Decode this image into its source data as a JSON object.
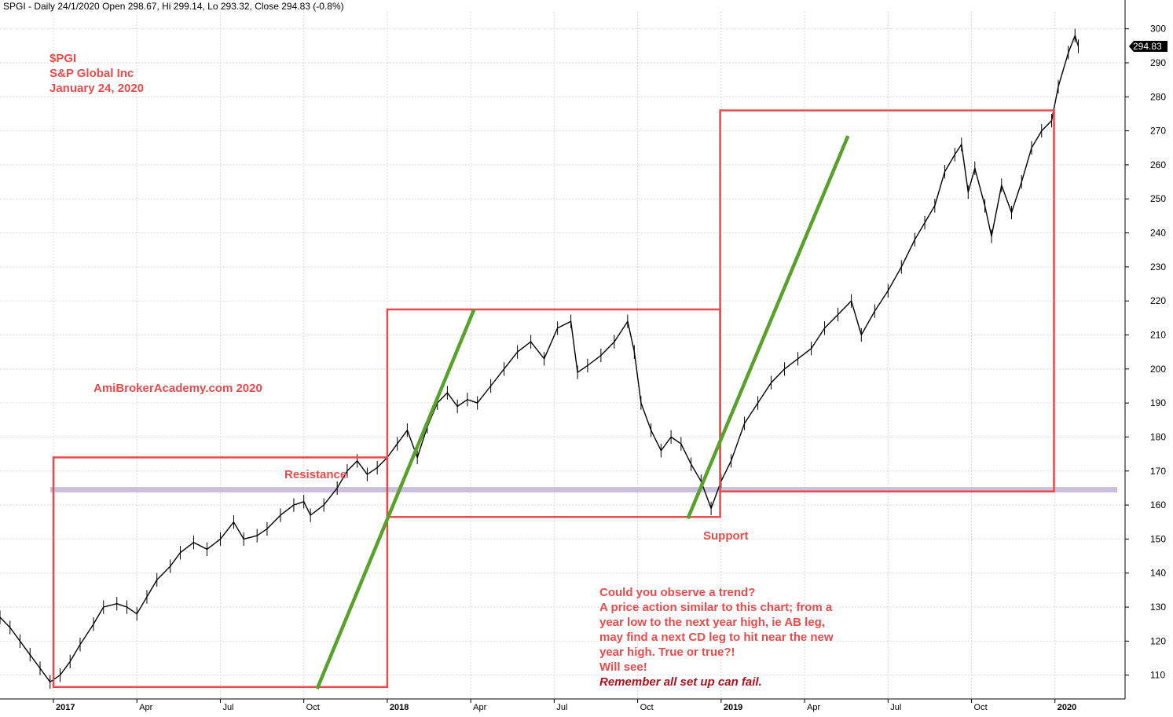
{
  "header": "SPGI - Daily 24/1/2020 Open 298.67, Hi 299.14, Lo 293.32, Close 294.83 (-0.8%)",
  "title_lines": [
    "$PGI",
    "S&P Global Inc",
    "January 24, 2020"
  ],
  "watermark": "AmiBrokerAcademy.com  2020",
  "annotations": {
    "resistance": "Resistance",
    "support": "Support"
  },
  "note_lines": [
    "Could you observe a trend?",
    "A price action similar to this chart; from a",
    "year low to the next year high, ie AB leg,",
    "may find a next CD leg to hit near the new",
    "year high. True or true?!",
    "Will see!"
  ],
  "note_emphasis": "Remember all set up can fail.",
  "last_price_label": "294.83",
  "colors": {
    "price": "#000000",
    "boxes": "#e84b4b",
    "trendlines": "#5aa02c",
    "level_line": "#c8c0dc",
    "grid": "#d9d9d9",
    "last_price_bg": "#000000"
  },
  "chart_data": {
    "type": "line",
    "ticker": "SPGI",
    "ylim": [
      103,
      305
    ],
    "y_ticks": [
      110,
      120,
      130,
      140,
      150,
      160,
      170,
      180,
      190,
      200,
      210,
      220,
      230,
      240,
      250,
      260,
      270,
      280,
      290,
      300
    ],
    "x_tick_labels": [
      "2017",
      "Apr",
      "Jul",
      "Oct",
      "2018",
      "Apr",
      "Jul",
      "Oct",
      "2019",
      "Apr",
      "Jul",
      "Oct",
      "2020"
    ],
    "x_ticks": [
      2017.0,
      2017.25,
      2017.5,
      2017.75,
      2018.0,
      2018.25,
      2018.5,
      2018.75,
      2019.0,
      2019.25,
      2019.5,
      2019.75,
      2020.0
    ],
    "xlim": [
      2016.84,
      2020.21
    ],
    "year_labels": [
      "2017",
      "2018",
      "2019",
      "2020"
    ],
    "grid": true,
    "series": [
      {
        "values": [
          [
            2016.84,
            127
          ],
          [
            2016.87,
            124
          ],
          [
            2016.9,
            120
          ],
          [
            2016.93,
            116
          ],
          [
            2016.96,
            112
          ],
          [
            2016.99,
            108
          ],
          [
            2017.02,
            110
          ],
          [
            2017.05,
            114
          ],
          [
            2017.08,
            119
          ],
          [
            2017.12,
            125
          ],
          [
            2017.15,
            130
          ],
          [
            2017.19,
            131
          ],
          [
            2017.22,
            130
          ],
          [
            2017.25,
            128
          ],
          [
            2017.28,
            133
          ],
          [
            2017.31,
            138
          ],
          [
            2017.35,
            142
          ],
          [
            2017.38,
            146
          ],
          [
            2017.42,
            149
          ],
          [
            2017.46,
            147
          ],
          [
            2017.5,
            150
          ],
          [
            2017.54,
            155
          ],
          [
            2017.57,
            150
          ],
          [
            2017.61,
            151
          ],
          [
            2017.64,
            153
          ],
          [
            2017.68,
            157
          ],
          [
            2017.72,
            160
          ],
          [
            2017.75,
            161
          ],
          [
            2017.77,
            157
          ],
          [
            2017.81,
            160
          ],
          [
            2017.85,
            165
          ],
          [
            2017.88,
            170
          ],
          [
            2017.91,
            173
          ],
          [
            2017.94,
            169
          ],
          [
            2017.97,
            171
          ],
          [
            2018.0,
            174
          ],
          [
            2018.03,
            178
          ],
          [
            2018.06,
            182
          ],
          [
            2018.09,
            174
          ],
          [
            2018.12,
            183
          ],
          [
            2018.15,
            190
          ],
          [
            2018.18,
            193
          ],
          [
            2018.21,
            189
          ],
          [
            2018.24,
            191
          ],
          [
            2018.27,
            190
          ],
          [
            2018.31,
            195
          ],
          [
            2018.35,
            200
          ],
          [
            2018.39,
            205
          ],
          [
            2018.43,
            208
          ],
          [
            2018.47,
            203
          ],
          [
            2018.51,
            212
          ],
          [
            2018.55,
            214
          ],
          [
            2018.57,
            199
          ],
          [
            2018.6,
            201
          ],
          [
            2018.64,
            204
          ],
          [
            2018.68,
            208
          ],
          [
            2018.72,
            214
          ],
          [
            2018.74,
            205
          ],
          [
            2018.76,
            190
          ],
          [
            2018.79,
            182
          ],
          [
            2018.82,
            176
          ],
          [
            2018.85,
            180
          ],
          [
            2018.88,
            178
          ],
          [
            2018.91,
            172
          ],
          [
            2018.94,
            167
          ],
          [
            2018.97,
            159
          ],
          [
            2019.0,
            167
          ],
          [
            2019.03,
            173
          ],
          [
            2019.07,
            184
          ],
          [
            2019.11,
            190
          ],
          [
            2019.15,
            196
          ],
          [
            2019.19,
            200
          ],
          [
            2019.23,
            203
          ],
          [
            2019.27,
            206
          ],
          [
            2019.31,
            212
          ],
          [
            2019.35,
            216
          ],
          [
            2019.39,
            220
          ],
          [
            2019.42,
            210
          ],
          [
            2019.46,
            217
          ],
          [
            2019.5,
            223
          ],
          [
            2019.54,
            230
          ],
          [
            2019.58,
            238
          ],
          [
            2019.61,
            243
          ],
          [
            2019.64,
            248
          ],
          [
            2019.67,
            258
          ],
          [
            2019.7,
            263
          ],
          [
            2019.72,
            266
          ],
          [
            2019.74,
            252
          ],
          [
            2019.76,
            259
          ],
          [
            2019.79,
            248
          ],
          [
            2019.81,
            239
          ],
          [
            2019.84,
            254
          ],
          [
            2019.87,
            246
          ],
          [
            2019.9,
            255
          ],
          [
            2019.93,
            265
          ],
          [
            2019.96,
            270
          ],
          [
            2019.99,
            273
          ],
          [
            2020.01,
            283
          ],
          [
            2020.04,
            293
          ],
          [
            2020.06,
            298
          ],
          [
            2020.07,
            294.83
          ]
        ]
      }
    ],
    "horizontal_line": {
      "y": 164.5,
      "x": [
        2016.84,
        2020.21
      ]
    },
    "boxes": [
      {
        "x": [
          2017.0,
          2018.0
        ],
        "y": [
          106.5,
          174
        ]
      },
      {
        "x": [
          2018.0,
          2018.997
        ],
        "y": [
          156.5,
          217.5
        ]
      },
      {
        "x": [
          2018.997,
          2019.997
        ],
        "y": [
          164,
          276
        ]
      }
    ],
    "trendlines": [
      {
        "x": [
          2017.79,
          2018.26
        ],
        "y": [
          106,
          217.5
        ]
      },
      {
        "x": [
          2018.9,
          2019.38
        ],
        "y": [
          156,
          268.5
        ]
      }
    ],
    "last_close": 294.83
  }
}
